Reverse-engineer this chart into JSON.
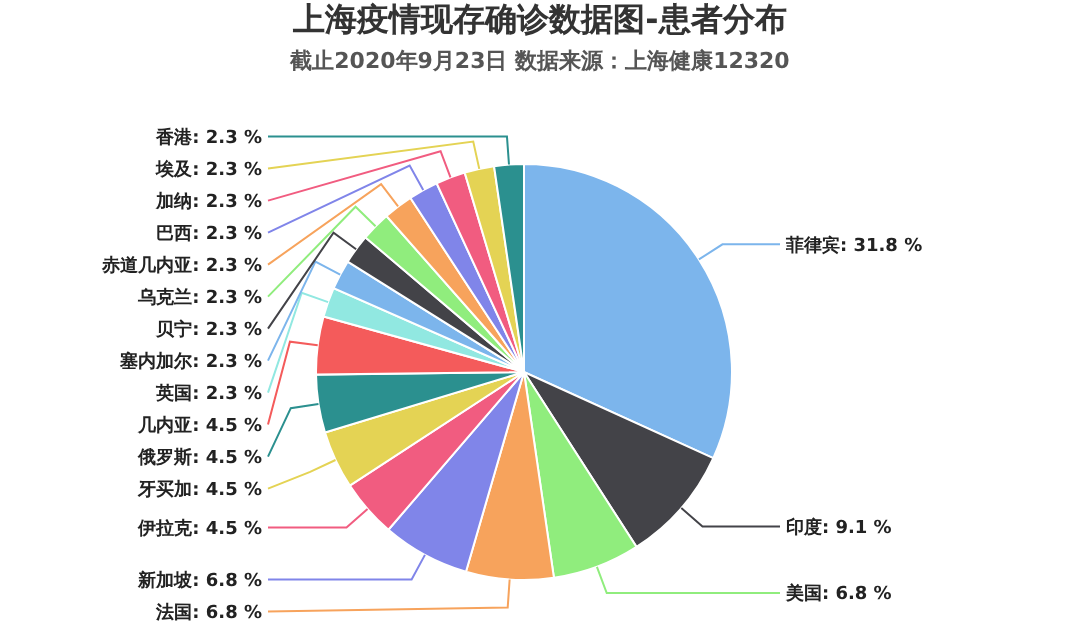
{
  "chart_data": {
    "type": "pie",
    "title": "上海疫情现存确诊数据图-患者分布",
    "subtitle": "截止2020年9月23日 数据来源：上海健康12320",
    "categories": [
      "菲律宾",
      "印度",
      "美国",
      "法国",
      "新加坡",
      "伊拉克",
      "牙买加",
      "俄罗斯",
      "几内亚",
      "英国",
      "塞内加尔",
      "贝宁",
      "乌克兰",
      "赤道几内亚",
      "巴西",
      "加纳",
      "埃及",
      "香港"
    ],
    "values": [
      31.8,
      9.1,
      6.8,
      6.8,
      6.8,
      4.5,
      4.5,
      4.5,
      4.5,
      2.3,
      2.3,
      2.3,
      2.3,
      2.3,
      2.3,
      2.3,
      2.3,
      2.3
    ],
    "value_labels": [
      "31.8 %",
      "9.1 %",
      "6.8 %",
      "6.8 %",
      "6.8 %",
      "4.5 %",
      "4.5 %",
      "4.5 %",
      "4.5 %",
      "2.3 %",
      "2.3 %",
      "2.3 %",
      "2.3 %",
      "2.3 %",
      "2.3 %",
      "2.3 %",
      "2.3 %",
      "2.3 %"
    ],
    "colors": [
      "#7cb5ec",
      "#434348",
      "#90ed7d",
      "#f7a35c",
      "#8085e9",
      "#f15c80",
      "#e4d354",
      "#2b908f",
      "#f45b5b",
      "#91e8e1",
      "#7cb5ec",
      "#434348",
      "#90ed7d",
      "#f7a35c",
      "#8085e9",
      "#f15c80",
      "#e4d354",
      "#2b908f"
    ]
  }
}
